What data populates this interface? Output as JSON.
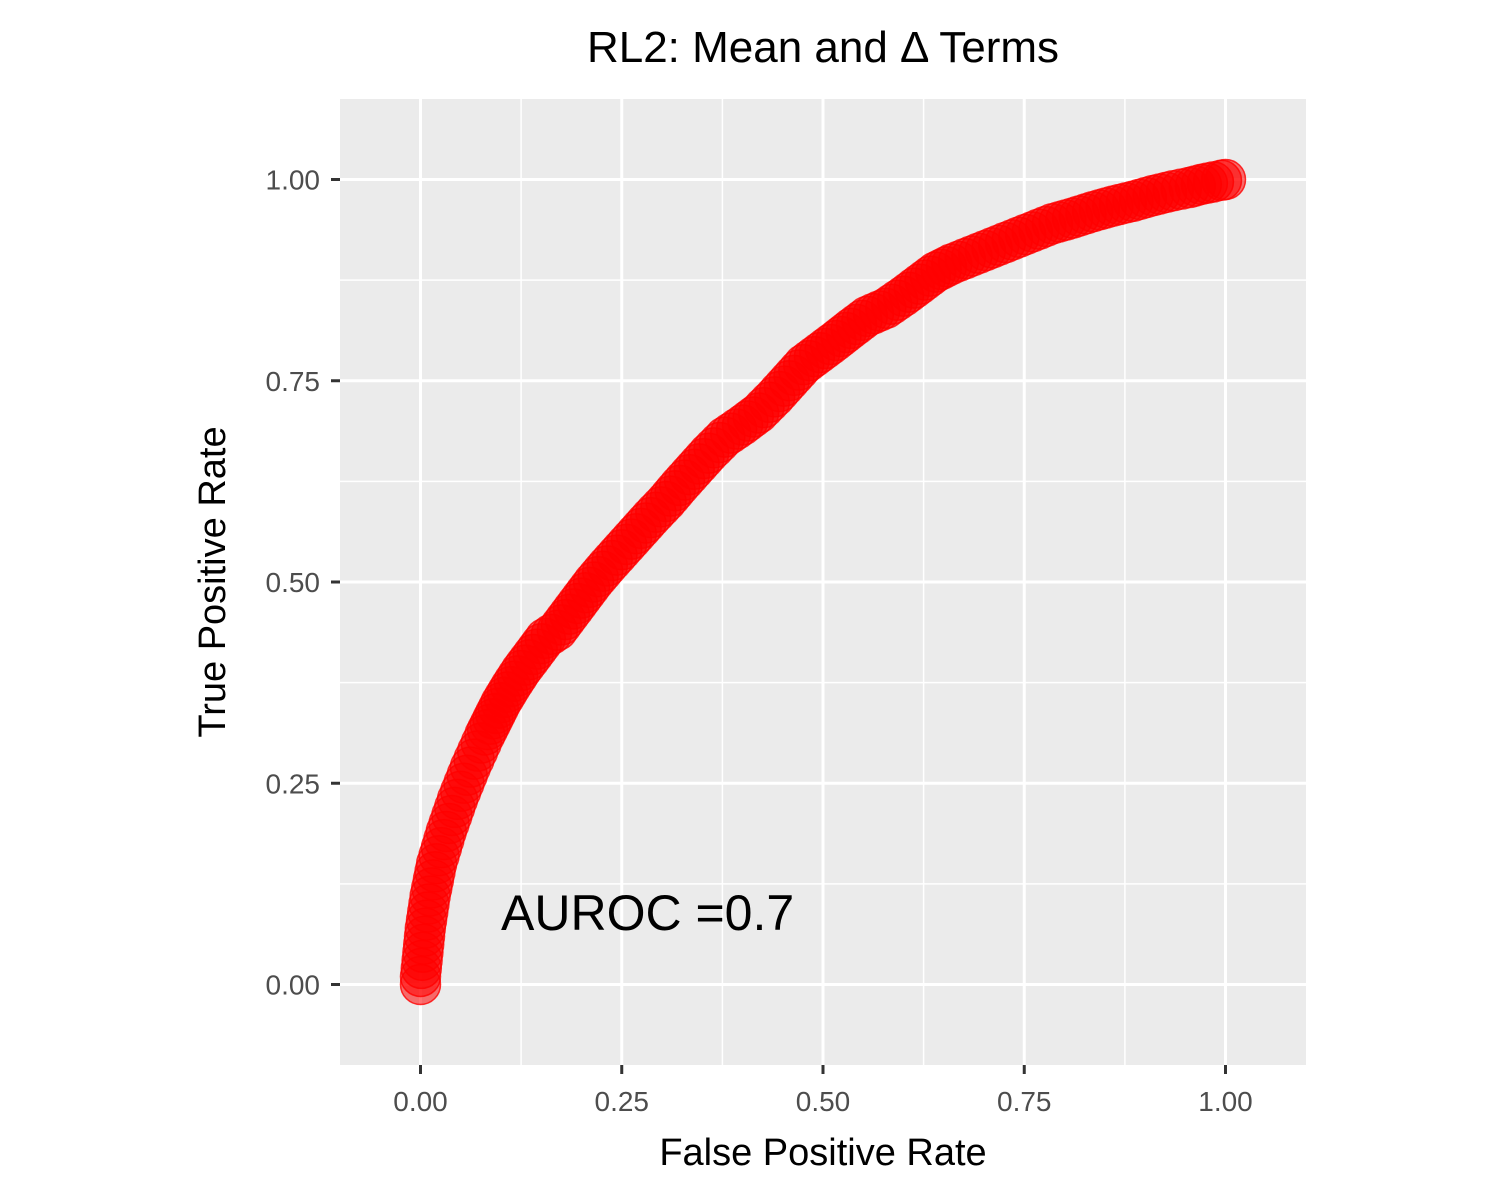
{
  "chart_data": {
    "type": "scatter",
    "title": "RL2: Mean and Δ Terms",
    "xlabel": "False Positive Rate",
    "ylabel": "True Positive Rate",
    "xlim": [
      -0.1,
      1.1
    ],
    "ylim": [
      -0.1,
      1.1
    ],
    "x_ticks": [
      "0.00",
      "0.25",
      "0.50",
      "0.75",
      "1.00"
    ],
    "y_ticks": [
      "0.00",
      "0.25",
      "0.50",
      "0.75",
      "1.00"
    ],
    "x_tick_values": [
      0,
      0.25,
      0.5,
      0.75,
      1.0
    ],
    "y_tick_values": [
      0,
      0.25,
      0.5,
      0.75,
      1.0
    ],
    "grid": true,
    "annotation": {
      "text": "AUROC =0.7",
      "x": 0.1,
      "y": 0.09
    },
    "series": [
      {
        "color": "#ff0000",
        "opacity": 0.55,
        "points": [
          [
            0.0,
            0.0
          ],
          [
            0.0,
            0.01
          ],
          [
            0.002,
            0.03
          ],
          [
            0.004,
            0.05
          ],
          [
            0.006,
            0.07
          ],
          [
            0.009,
            0.09
          ],
          [
            0.012,
            0.11
          ],
          [
            0.016,
            0.13
          ],
          [
            0.02,
            0.15
          ],
          [
            0.026,
            0.17
          ],
          [
            0.032,
            0.19
          ],
          [
            0.039,
            0.21
          ],
          [
            0.046,
            0.23
          ],
          [
            0.054,
            0.25
          ],
          [
            0.062,
            0.27
          ],
          [
            0.071,
            0.29
          ],
          [
            0.08,
            0.31
          ],
          [
            0.09,
            0.33
          ],
          [
            0.1,
            0.35
          ],
          [
            0.112,
            0.37
          ],
          [
            0.125,
            0.39
          ],
          [
            0.14,
            0.41
          ],
          [
            0.155,
            0.43
          ],
          [
            0.17,
            0.44
          ],
          [
            0.185,
            0.46
          ],
          [
            0.2,
            0.48
          ],
          [
            0.215,
            0.5
          ],
          [
            0.232,
            0.52
          ],
          [
            0.25,
            0.54
          ],
          [
            0.268,
            0.56
          ],
          [
            0.286,
            0.58
          ],
          [
            0.305,
            0.6
          ],
          [
            0.322,
            0.62
          ],
          [
            0.34,
            0.64
          ],
          [
            0.358,
            0.66
          ],
          [
            0.378,
            0.68
          ],
          [
            0.4,
            0.695
          ],
          [
            0.42,
            0.71
          ],
          [
            0.44,
            0.73
          ],
          [
            0.458,
            0.75
          ],
          [
            0.476,
            0.77
          ],
          [
            0.496,
            0.785
          ],
          [
            0.516,
            0.8
          ],
          [
            0.535,
            0.815
          ],
          [
            0.555,
            0.83
          ],
          [
            0.578,
            0.84
          ],
          [
            0.6,
            0.855
          ],
          [
            0.62,
            0.87
          ],
          [
            0.64,
            0.885
          ],
          [
            0.66,
            0.895
          ],
          [
            0.685,
            0.905
          ],
          [
            0.71,
            0.915
          ],
          [
            0.735,
            0.925
          ],
          [
            0.76,
            0.935
          ],
          [
            0.785,
            0.945
          ],
          [
            0.81,
            0.952
          ],
          [
            0.835,
            0.96
          ],
          [
            0.86,
            0.967
          ],
          [
            0.885,
            0.973
          ],
          [
            0.91,
            0.98
          ],
          [
            0.935,
            0.986
          ],
          [
            0.955,
            0.99
          ],
          [
            0.97,
            0.994
          ],
          [
            0.985,
            0.997
          ],
          [
            0.995,
            0.999
          ],
          [
            1.0,
            1.0
          ]
        ]
      }
    ]
  }
}
